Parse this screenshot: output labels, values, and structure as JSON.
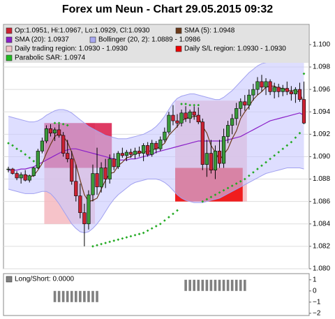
{
  "title": "Forex um Neun - Chart 29.05.2015 09:32",
  "chart_data": [
    {
      "type": "candlestick",
      "ylim": [
        1.08,
        1.1018
      ],
      "yticks": [
        {
          "value": 1.08,
          "label": "1.080"
        },
        {
          "value": 1.082,
          "label": "1.082"
        },
        {
          "value": 1.084,
          "label": "1.084"
        },
        {
          "value": 1.086,
          "label": "1.086"
        },
        {
          "value": 1.088,
          "label": "1.088"
        },
        {
          "value": 1.09,
          "label": "1.090"
        },
        {
          "value": 1.092,
          "label": "1.092"
        },
        {
          "value": 1.094,
          "label": "1.094"
        },
        {
          "value": 1.096,
          "label": "1.096"
        },
        {
          "value": 1.098,
          "label": "1.098"
        },
        {
          "value": 1.1,
          "label": "1.100"
        }
      ],
      "grid": true,
      "legend_position": "top",
      "legend": [
        {
          "label": "Op:1.0951, Hi:1.0967, Lo:1.0929, Cl:1.0930",
          "color": "#cc2233"
        },
        {
          "label": "SMA (5): 1.0948",
          "color": "#6b3a1a"
        },
        {
          "label": "SMA (20): 1.0937",
          "color": "#8a20c8"
        },
        {
          "label": "Bollinger (20, 2): 1.0889 - 1.0986",
          "color": "#a8a8f0"
        },
        {
          "label": "Daily trading region: 1.0930 - 1.0930",
          "color": "#f4c4c8"
        },
        {
          "label": "Daily S/L region: 1.0930 - 1.0930",
          "color": "#ee0000"
        },
        {
          "label": "Parabolic SAR: 1.0974",
          "color": "#22bb22"
        }
      ],
      "up_color": "#3a9a3a",
      "down_color": "#cc2233",
      "open": [
        1.0889,
        1.0889,
        1.0885,
        1.0881,
        1.0884,
        1.0879,
        1.0883,
        1.089,
        1.0905,
        1.0914,
        1.0925,
        1.0921,
        1.0924,
        1.0919,
        1.0903,
        1.0898,
        1.0878,
        1.0865,
        1.085,
        1.084,
        1.0866,
        1.0885,
        1.0873,
        1.089,
        1.088,
        1.0898,
        1.0891,
        1.0903,
        1.0901,
        1.0904,
        1.0902,
        1.0905,
        1.0903,
        1.091,
        1.0902,
        1.0912,
        1.0907,
        1.0915,
        1.0922,
        1.0937,
        1.0932,
        1.093,
        1.0939,
        1.0934,
        1.094,
        1.0937,
        1.0931,
        1.0893,
        1.0903,
        1.0888,
        1.0905,
        1.0894,
        1.0918,
        1.0928,
        1.0934,
        1.0943,
        1.0949,
        1.0946,
        1.0955,
        1.096,
        1.0967,
        1.0962,
        1.0967,
        1.0958,
        1.0962,
        1.0958,
        1.0961,
        1.0958,
        1.0956,
        1.096,
        1.0951
      ],
      "high": [
        1.0891,
        1.089,
        1.0887,
        1.0886,
        1.0888,
        1.0884,
        1.0891,
        1.0907,
        1.0917,
        1.0928,
        1.0929,
        1.0926,
        1.0929,
        1.0922,
        1.0915,
        1.0905,
        1.0893,
        1.0876,
        1.0858,
        1.087,
        1.0893,
        1.0908,
        1.0895,
        1.0898,
        1.0902,
        1.0903,
        1.0905,
        1.0908,
        1.0906,
        1.0907,
        1.0908,
        1.0909,
        1.0912,
        1.0913,
        1.0915,
        1.0914,
        1.0918,
        1.0926,
        1.094,
        1.0946,
        1.0938,
        1.0942,
        1.0945,
        1.0942,
        1.0945,
        1.0944,
        1.0934,
        1.0915,
        1.0915,
        1.091,
        1.0915,
        1.0925,
        1.0932,
        1.0938,
        1.0948,
        1.0952,
        1.0955,
        1.096,
        1.0965,
        1.0971,
        1.0973,
        1.097,
        1.0969,
        1.0966,
        1.0965,
        1.0964,
        1.0967,
        1.0963,
        1.0962,
        1.0966,
        1.0967
      ],
      "low": [
        1.0886,
        1.0884,
        1.0879,
        1.0876,
        1.0878,
        1.0877,
        1.0882,
        1.0889,
        1.0903,
        1.0912,
        1.0918,
        1.0914,
        1.0917,
        1.09,
        1.0895,
        1.0875,
        1.086,
        1.0845,
        1.082,
        1.0835,
        1.086,
        1.0866,
        1.0868,
        1.0872,
        1.0876,
        1.0888,
        1.0889,
        1.0899,
        1.0896,
        1.0899,
        1.0898,
        1.09,
        1.0896,
        1.09,
        1.09,
        1.0903,
        1.0905,
        1.0913,
        1.092,
        1.0928,
        1.0926,
        1.0927,
        1.0931,
        1.093,
        1.0933,
        1.0929,
        1.0888,
        1.0882,
        1.0885,
        1.088,
        1.089,
        1.089,
        1.0912,
        1.092,
        1.0928,
        1.0936,
        1.0941,
        1.0942,
        1.095,
        1.0955,
        1.0958,
        1.0955,
        1.0955,
        1.0952,
        1.0953,
        1.0954,
        1.0955,
        1.095,
        1.0948,
        1.0949,
        1.0929
      ],
      "close": [
        1.0889,
        1.0885,
        1.0881,
        1.0884,
        1.0879,
        1.0883,
        1.089,
        1.0905,
        1.0914,
        1.0925,
        1.0921,
        1.0924,
        1.0919,
        1.0903,
        1.0898,
        1.0878,
        1.0865,
        1.085,
        1.084,
        1.0866,
        1.0885,
        1.0873,
        1.089,
        1.088,
        1.0898,
        1.0891,
        1.0903,
        1.0901,
        1.0904,
        1.0902,
        1.0905,
        1.0903,
        1.091,
        1.0902,
        1.0912,
        1.0907,
        1.0915,
        1.0922,
        1.0937,
        1.0932,
        1.093,
        1.0939,
        1.0934,
        1.094,
        1.0937,
        1.0931,
        1.0893,
        1.0903,
        1.0888,
        1.0905,
        1.0894,
        1.0918,
        1.0928,
        1.0934,
        1.0943,
        1.0949,
        1.0946,
        1.0955,
        1.096,
        1.0967,
        1.0962,
        1.0967,
        1.0958,
        1.0962,
        1.0958,
        1.0961,
        1.0958,
        1.0956,
        1.096,
        1.0951,
        1.093
      ],
      "sma5": {
        "color": "#6b3a1a",
        "values": [
          null,
          null,
          null,
          null,
          1.0884,
          1.0882,
          1.0883,
          1.0888,
          1.0894,
          1.0903,
          1.0911,
          1.0918,
          1.0921,
          1.0918,
          1.0913,
          1.0904,
          1.0893,
          1.0879,
          1.0866,
          1.086,
          1.0861,
          1.0863,
          1.0871,
          1.0879,
          1.0885,
          1.0886,
          1.0892,
          1.0895,
          1.0899,
          1.09,
          1.0903,
          1.0903,
          1.0905,
          1.0904,
          1.0906,
          1.0907,
          1.0909,
          1.0912,
          1.0919,
          1.0923,
          1.0927,
          1.0932,
          1.0934,
          1.0935,
          1.0936,
          1.0936,
          1.0927,
          1.0921,
          1.091,
          1.0904,
          1.0897,
          1.0902,
          1.0907,
          1.0916,
          1.0923,
          1.0934,
          1.094,
          1.0945,
          1.0951,
          1.0955,
          1.0958,
          1.0962,
          1.0963,
          1.0963,
          1.0961,
          1.0961,
          1.0959,
          1.0959,
          1.0959,
          1.0957,
          1.0948
        ]
      },
      "sma20": {
        "color": "#8a20c8",
        "values": [
          1.0888,
          1.0888,
          1.0888,
          1.0889,
          1.0889,
          1.089,
          1.0891,
          1.0893,
          1.0895,
          1.0897,
          1.0899,
          1.0901,
          1.0903,
          1.0905,
          1.0906,
          1.0907,
          1.0907,
          1.0906,
          1.0905,
          1.0904,
          1.0903,
          1.0902,
          1.0901,
          1.09,
          1.0899,
          1.0898,
          1.0897,
          1.0897,
          1.0897,
          1.0898,
          1.0898,
          1.0899,
          1.09,
          1.0901,
          1.0902,
          1.0904,
          1.0905,
          1.0906,
          1.0907,
          1.0908,
          1.0909,
          1.091,
          1.0911,
          1.0912,
          1.0913,
          1.0914,
          1.0914,
          1.0914,
          1.0914,
          1.0914,
          1.0914,
          1.0914,
          1.0915,
          1.0916,
          1.0917,
          1.0918,
          1.092,
          1.0922,
          1.0924,
          1.0926,
          1.0928,
          1.093,
          1.0932,
          1.0933,
          1.0934,
          1.0935,
          1.0936,
          1.0937,
          1.0938,
          1.0939,
          1.0937
        ]
      },
      "bollinger": {
        "color": "#a0a0f0",
        "fill": "#c8c8ff",
        "upper": [
          1.0936,
          1.0935,
          1.0934,
          1.0933,
          1.0932,
          1.0931,
          1.0931,
          1.0932,
          1.0934,
          1.0937,
          1.0939,
          1.0941,
          1.0942,
          1.0942,
          1.0941,
          1.0939,
          1.0936,
          1.0933,
          1.093,
          1.0927,
          1.0925,
          1.0923,
          1.0921,
          1.0919,
          1.0918,
          1.0917,
          1.0916,
          1.0916,
          1.0916,
          1.0917,
          1.0918,
          1.0919,
          1.092,
          1.0922,
          1.0924,
          1.0927,
          1.0931,
          1.0936,
          1.0942,
          1.0948,
          1.0952,
          1.0954,
          1.0955,
          1.0956,
          1.0956,
          1.0955,
          1.0954,
          1.0953,
          1.0952,
          1.0951,
          1.0951,
          1.0953,
          1.0956,
          1.0959,
          1.0963,
          1.0967,
          1.0971,
          1.0975,
          1.0978,
          1.0981,
          1.0983,
          1.0984,
          1.0985,
          1.0986,
          1.0986,
          1.0986,
          1.0986,
          1.0986,
          1.0986,
          1.0986,
          1.0986
        ],
        "lower": [
          1.0871,
          1.087,
          1.0869,
          1.0868,
          1.0867,
          1.0867,
          1.0867,
          1.0868,
          1.0869,
          1.0869,
          1.0867,
          1.0863,
          1.0858,
          1.0852,
          1.0846,
          1.084,
          1.0836,
          1.0833,
          1.0832,
          1.0833,
          1.0836,
          1.084,
          1.0845,
          1.0851,
          1.0857,
          1.0862,
          1.0866,
          1.0869,
          1.0872,
          1.0875,
          1.0877,
          1.0878,
          1.0879,
          1.088,
          1.088,
          1.088,
          1.0879,
          1.0877,
          1.0874,
          1.087,
          1.0866,
          1.0863,
          1.0861,
          1.086,
          1.0859,
          1.0859,
          1.0859,
          1.086,
          1.0861,
          1.0862,
          1.0863,
          1.0865,
          1.0867,
          1.0869,
          1.0871,
          1.0873,
          1.0875,
          1.0877,
          1.0879,
          1.0881,
          1.0883,
          1.0885,
          1.0886,
          1.0887,
          1.0888,
          1.0889,
          1.089,
          1.089,
          1.089,
          1.089,
          1.0889
        ]
      },
      "sar": {
        "color": "#22aa22",
        "values": [
          1.0912,
          1.091,
          1.0907,
          1.0905,
          1.0902,
          1.0899,
          1.0896,
          null,
          null,
          null,
          null,
          1.093,
          1.093,
          1.0929,
          1.0928,
          null,
          null,
          null,
          null,
          null,
          1.082,
          1.0821,
          1.0822,
          1.0823,
          1.0824,
          1.0825,
          1.0826,
          1.0827,
          1.0828,
          1.0829,
          1.083,
          1.0831,
          1.0832,
          1.0834,
          1.0836,
          1.0838,
          1.084,
          1.0843,
          1.0846,
          1.0849,
          1.0852,
          1.0947,
          1.0947,
          1.0946,
          1.0946,
          1.0946,
          1.086,
          1.0862,
          1.0864,
          1.0866,
          1.0868,
          1.087,
          1.0872,
          1.0874,
          1.0876,
          1.0878,
          1.088,
          1.0883,
          1.0886,
          1.0889,
          1.0892,
          1.0895,
          1.0898,
          1.0901,
          1.0904,
          1.0907,
          1.091,
          1.0913,
          1.0917,
          1.0921,
          1.0974
        ]
      },
      "trading_regions": {
        "color": "#f4b8c0",
        "items": [
          {
            "from": 9,
            "to": 20,
            "high": 1.093,
            "low": 1.084
          },
          {
            "from": 40,
            "to": 56,
            "high": 1.095,
            "low": 1.086
          }
        ]
      },
      "sl_regions": {
        "items": [
          {
            "from": 9,
            "to": 24,
            "high": 1.093,
            "low": 1.089,
            "color": "#d81848"
          },
          {
            "from": 40,
            "to": 55,
            "high": 1.089,
            "low": 1.086,
            "color": "#ee0000"
          }
        ]
      }
    },
    {
      "type": "bar",
      "legend": [
        {
          "label": "Long/Short: 0.0000",
          "color": "#808080"
        }
      ],
      "color": "#808080",
      "ylim": [
        -2.2,
        1.55
      ],
      "yticks": [
        1,
        0,
        {
          "value": -1,
          "label": "−1"
        },
        {
          "value": -2,
          "label": "−2"
        }
      ],
      "values": [
        0,
        0,
        0,
        0,
        0,
        0,
        0,
        0,
        0,
        0,
        0,
        -1,
        -1,
        -1,
        -1,
        -1,
        -1,
        -1,
        -1,
        -1,
        -1,
        -1,
        0,
        0,
        0,
        0,
        0,
        0,
        0,
        0,
        0,
        0,
        0,
        0,
        0,
        0,
        0,
        0,
        0,
        0,
        0,
        0,
        1,
        1,
        1,
        1,
        1,
        1,
        1,
        1,
        1,
        1,
        1,
        1,
        1,
        1,
        1,
        0,
        0,
        0,
        0,
        0,
        0,
        0,
        0,
        0,
        0,
        0,
        0,
        0,
        0
      ]
    }
  ]
}
